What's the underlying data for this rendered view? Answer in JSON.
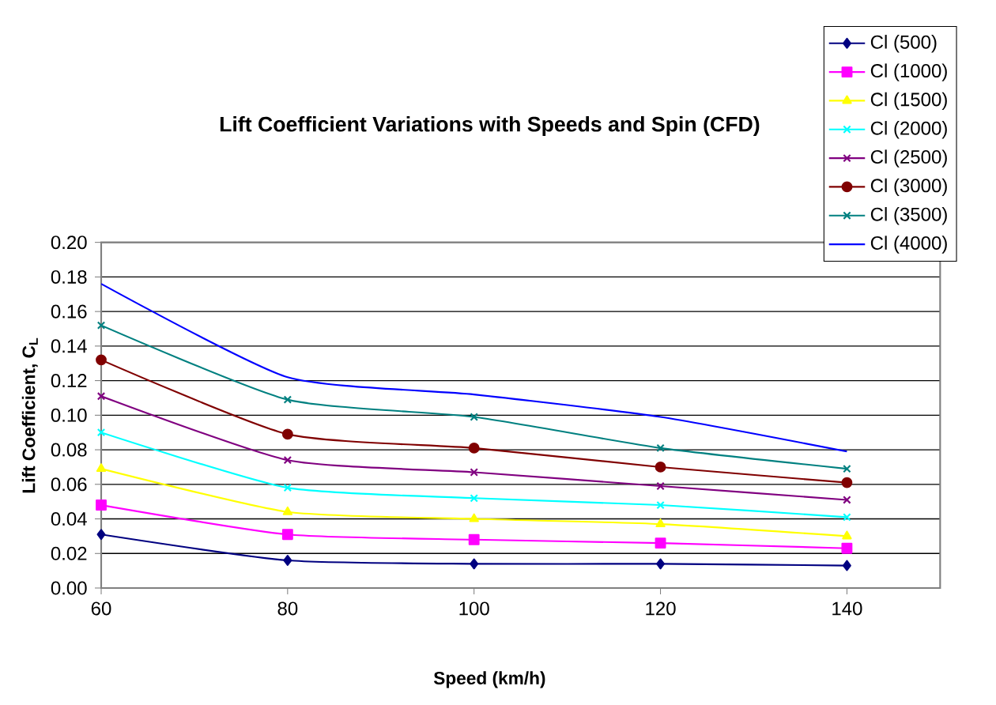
{
  "chart_data": {
    "type": "line",
    "title": "Lift Coefficient Variations with Speeds and Spin (CFD)",
    "xlabel": "Speed (km/h)",
    "ylabel": "Lift Coefficient,  C$_{L}$",
    "x": [
      60,
      80,
      100,
      120,
      140
    ],
    "xlim": [
      60,
      150
    ],
    "xticks": [
      60,
      80,
      100,
      120,
      140
    ],
    "ylim": [
      0,
      0.2
    ],
    "yticks": [
      {
        "value": 0,
        "label": "0.00"
      },
      {
        "value": 0.02,
        "label": "0.02"
      },
      {
        "value": 0.04,
        "label": "0.04"
      },
      {
        "value": 0.06,
        "label": "0.06"
      },
      {
        "value": 0.08,
        "label": "0.08"
      },
      {
        "value": 0.1,
        "label": "0.10"
      },
      {
        "value": 0.12,
        "label": "0.12"
      },
      {
        "value": 0.14,
        "label": "0.14"
      },
      {
        "value": 0.16,
        "label": "0.16"
      },
      {
        "value": 0.18,
        "label": "0.18"
      },
      {
        "value": 0.2,
        "label": "0.20"
      }
    ],
    "grid": "y",
    "legend": "top right",
    "series": [
      {
        "name": "Cl (500)",
        "color": "#000080",
        "marker": "diamond",
        "values": [
          0.031,
          0.016,
          0.014,
          0.014,
          0.013
        ]
      },
      {
        "name": "Cl (1000)",
        "color": "#ff00ff",
        "marker": "square",
        "values": [
          0.048,
          0.031,
          0.028,
          0.026,
          0.023
        ]
      },
      {
        "name": "Cl (1500)",
        "color": "#ffff00",
        "marker": "triangle",
        "values": [
          0.069,
          0.044,
          0.04,
          0.037,
          0.03
        ]
      },
      {
        "name": "Cl (2000)",
        "color": "#00ffff",
        "marker": "cross",
        "values": [
          0.09,
          0.058,
          0.052,
          0.048,
          0.041
        ]
      },
      {
        "name": "Cl (2500)",
        "color": "#800080",
        "marker": "cross",
        "values": [
          0.111,
          0.074,
          0.067,
          0.059,
          0.051
        ]
      },
      {
        "name": "Cl (3000)",
        "color": "#800000",
        "marker": "circle",
        "values": [
          0.132,
          0.089,
          0.081,
          0.07,
          0.061
        ]
      },
      {
        "name": "Cl (3500)",
        "color": "#008080",
        "marker": "cross",
        "values": [
          0.152,
          0.109,
          0.099,
          0.081,
          0.069
        ]
      },
      {
        "name": "Cl (4000)",
        "color": "#0000ff",
        "marker": "none",
        "values": [
          0.176,
          0.122,
          0.112,
          0.099,
          0.079
        ]
      }
    ]
  }
}
